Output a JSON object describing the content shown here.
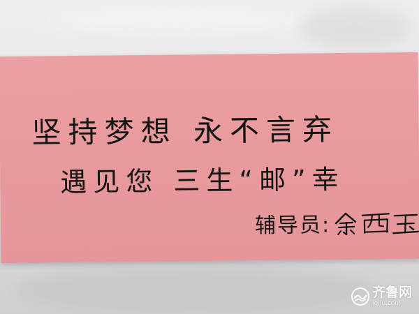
{
  "card": {
    "line1": "坚持梦想 永不言弃",
    "line2": "遇见您 三生“邮”幸",
    "signature_label": "辅导员:",
    "signature_name": "余西玉"
  },
  "watermark": {
    "name": "齐鲁网",
    "url": "iqilu.com",
    "icon": "wave-logo-icon"
  },
  "colors": {
    "card_pink": "#e99a9d",
    "ink": "#151515",
    "cloth": "#e6e6e9"
  }
}
